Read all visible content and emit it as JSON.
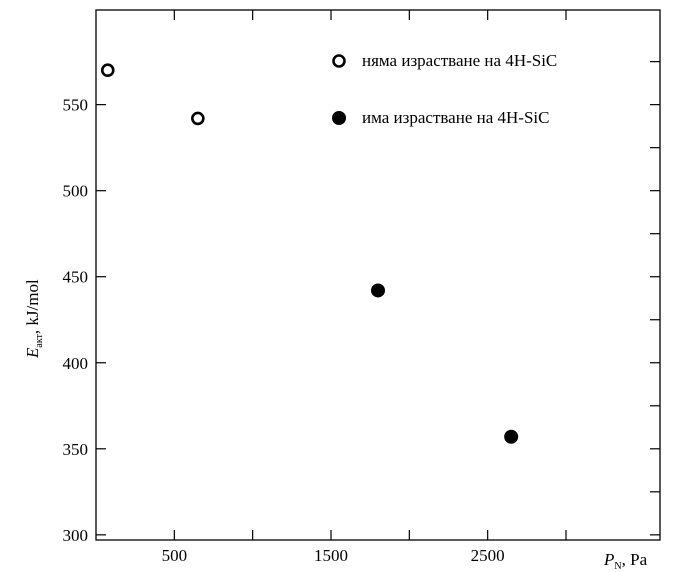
{
  "chart_data": {
    "type": "scatter",
    "title": "",
    "xlabel_main": "P",
    "xlabel_sub": "N",
    "xlabel_unit": ", Pa",
    "ylabel_main": "E",
    "ylabel_sub": "акт",
    "ylabel_unit": ", kJ/mol",
    "xlim": [
      0,
      3600
    ],
    "ylim": [
      297,
      605
    ],
    "x_ticks": [
      500,
      1500,
      2500
    ],
    "x_tick_labels": [
      "500",
      "1500",
      "2500"
    ],
    "x_minor_ticks": [
      1000,
      2000,
      3000
    ],
    "y_ticks": [
      300,
      350,
      400,
      450,
      500,
      550
    ],
    "y_tick_labels": [
      "300",
      "350",
      "400",
      "450",
      "500",
      "550"
    ],
    "y_minor_ticks": [
      325,
      375,
      425,
      475,
      525,
      575
    ],
    "grid": false,
    "legend_position": "top-right",
    "series": [
      {
        "name": "няма израстване на 4H-SiC",
        "marker": "open-circle",
        "color": "#000000",
        "points": [
          {
            "x": 75,
            "y": 570
          },
          {
            "x": 650,
            "y": 542
          }
        ]
      },
      {
        "name": "има израстване на 4H-SiC",
        "marker": "filled-circle",
        "color": "#000000",
        "points": [
          {
            "x": 1800,
            "y": 442
          },
          {
            "x": 2650,
            "y": 357
          }
        ]
      }
    ]
  }
}
